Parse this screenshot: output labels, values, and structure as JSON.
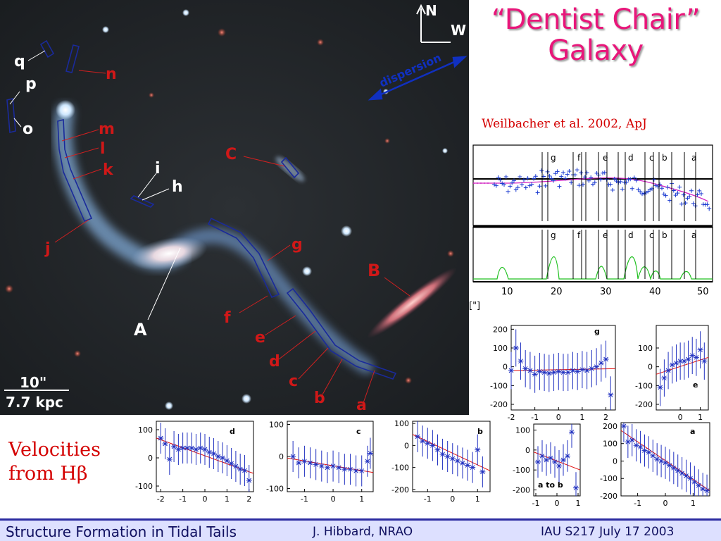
{
  "slide": {
    "title_line1": "“Dentist Chair”",
    "title_line2": "Galaxy",
    "citation": "Weilbacher et al.  2002, ApJ",
    "caption_line1": "Velocities",
    "caption_line2": "from Hβ"
  },
  "image": {
    "compass_n": "N",
    "compass_w": "W",
    "dispersion": "dispersion",
    "scale_arcsec": "10\"",
    "scale_kpc": "7.7 kpc",
    "slit_labels": [
      "q",
      "p",
      "o",
      "n",
      "m",
      "l",
      "k",
      "j",
      "i",
      "h",
      "C",
      "g",
      "f",
      "e",
      "d",
      "c",
      "b",
      "a"
    ],
    "object_labels": [
      "A",
      "B"
    ]
  },
  "spectrum": {
    "region_labels": [
      "g",
      "f",
      "e",
      "d",
      "c",
      "b",
      "a"
    ],
    "x_ticks": [
      "10",
      "20",
      "30",
      "40",
      "50"
    ],
    "x_unit": "[\"]"
  },
  "footer": {
    "left": "Structure Formation in Tidal Tails",
    "middle": "J. Hibbard, NRAO",
    "right": "IAU S217  July 17 2003"
  },
  "chart_data": [
    {
      "type": "scatter",
      "label": "g",
      "xlim": [
        -2,
        2.4
      ],
      "ylim": [
        -230,
        220
      ],
      "x_ticks": [
        "-2",
        "-1",
        "0",
        "1",
        "2"
      ],
      "y_ticks": [
        "200",
        "100",
        "0",
        "-100",
        "-200"
      ],
      "x": [
        -2.0,
        -1.8,
        -1.6,
        -1.4,
        -1.2,
        -1.0,
        -0.8,
        -0.6,
        -0.4,
        -0.2,
        0.0,
        0.2,
        0.4,
        0.6,
        0.8,
        1.0,
        1.2,
        1.4,
        1.6,
        1.8,
        2.0,
        2.2
      ],
      "y": [
        -20,
        100,
        30,
        -10,
        -20,
        -40,
        -25,
        -30,
        -35,
        -30,
        -25,
        -30,
        -30,
        -20,
        -25,
        -15,
        -20,
        -10,
        0,
        20,
        40,
        -150
      ],
      "fit": [
        [
          -2.0,
          -20
        ],
        [
          2.4,
          -10
        ]
      ]
    },
    {
      "type": "scatter",
      "label": "e",
      "xlim": [
        -1.2,
        1.4
      ],
      "ylim": [
        -230,
        220
      ],
      "x_ticks": [
        "0",
        "1"
      ],
      "y_ticks": [
        "100",
        "0",
        "-100",
        "-200"
      ],
      "x": [
        -1.0,
        -0.8,
        -0.6,
        -0.4,
        -0.2,
        0.0,
        0.2,
        0.4,
        0.6,
        0.8,
        1.0,
        1.2
      ],
      "y": [
        -110,
        -60,
        -20,
        10,
        20,
        30,
        30,
        40,
        60,
        50,
        90,
        30
      ],
      "fit": [
        [
          -1.2,
          -40
        ],
        [
          1.4,
          50
        ]
      ]
    },
    {
      "type": "scatter",
      "label": "d",
      "xlim": [
        -2.2,
        2.2
      ],
      "ylim": [
        -120,
        130
      ],
      "x_ticks": [
        "-2",
        "-1",
        "0",
        "1",
        "2"
      ],
      "y_ticks": [
        "100",
        "0",
        "-100"
      ],
      "x": [
        -2.0,
        -1.8,
        -1.6,
        -1.4,
        -1.2,
        -1.0,
        -0.8,
        -0.6,
        -0.4,
        -0.2,
        0.0,
        0.2,
        0.4,
        0.6,
        0.8,
        1.0,
        1.2,
        1.4,
        1.6,
        1.8,
        2.0
      ],
      "y": [
        70,
        50,
        -5,
        40,
        30,
        35,
        35,
        35,
        30,
        35,
        30,
        20,
        15,
        5,
        0,
        -10,
        -20,
        -30,
        -40,
        -45,
        -80
      ],
      "fit": [
        [
          -2.2,
          70
        ],
        [
          2.2,
          -55
        ]
      ]
    },
    {
      "type": "scatter",
      "label": "c",
      "xlim": [
        -1.6,
        1.4
      ],
      "ylim": [
        -110,
        110
      ],
      "x_ticks": [
        "-1",
        "0",
        "1"
      ],
      "y_ticks": [
        "100",
        "0",
        "-100"
      ],
      "x": [
        -1.4,
        -1.2,
        -1.0,
        -0.8,
        -0.6,
        -0.4,
        -0.2,
        0.0,
        0.2,
        0.4,
        0.6,
        0.8,
        1.0,
        1.2,
        1.3
      ],
      "y": [
        0,
        -20,
        -15,
        -20,
        -25,
        -30,
        -35,
        -30,
        -35,
        -40,
        -40,
        -45,
        -45,
        -15,
        10
      ],
      "fit": [
        [
          -1.6,
          -5
        ],
        [
          1.4,
          -50
        ]
      ]
    },
    {
      "type": "scatter",
      "label": "b",
      "xlim": [
        -1.6,
        1.5
      ],
      "ylim": [
        -210,
        110
      ],
      "x_ticks": [
        "-1",
        "0",
        "1"
      ],
      "y_ticks": [
        "100",
        "0",
        "-100",
        "-200"
      ],
      "x": [
        -1.4,
        -1.2,
        -1.0,
        -0.8,
        -0.6,
        -0.4,
        -0.2,
        0.0,
        0.2,
        0.4,
        0.6,
        0.8,
        1.0,
        1.2
      ],
      "y": [
        40,
        20,
        10,
        0,
        -20,
        -40,
        -50,
        -60,
        -70,
        -80,
        -90,
        -100,
        -20,
        -120
      ],
      "fit": [
        [
          -1.6,
          50
        ],
        [
          1.5,
          -115
        ]
      ]
    },
    {
      "type": "scatter",
      "label": "a to b",
      "xlim": [
        -1.1,
        1.1
      ],
      "ylim": [
        -230,
        130
      ],
      "x_ticks": [
        "-1",
        "0",
        "1"
      ],
      "y_ticks": [
        "100",
        "0",
        "-100",
        "-200"
      ],
      "x": [
        -0.9,
        -0.7,
        -0.5,
        -0.3,
        -0.1,
        0.1,
        0.3,
        0.5,
        0.7,
        0.9
      ],
      "y": [
        -60,
        -30,
        -50,
        -40,
        -60,
        -80,
        -50,
        -30,
        90,
        -190
      ],
      "fit": [
        [
          -1.1,
          -10
        ],
        [
          1.1,
          -100
        ]
      ]
    },
    {
      "type": "scatter",
      "label": "a",
      "xlim": [
        -1.6,
        1.6
      ],
      "ylim": [
        -200,
        220
      ],
      "x_ticks": [
        "-1",
        "0",
        "1"
      ],
      "y_ticks": [
        "200",
        "100",
        "0",
        "-100",
        "-200"
      ],
      "x": [
        -1.5,
        -1.35,
        -1.2,
        -1.05,
        -0.9,
        -0.75,
        -0.6,
        -0.45,
        -0.3,
        -0.15,
        0.0,
        0.15,
        0.3,
        0.45,
        0.6,
        0.75,
        0.9,
        1.05,
        1.2,
        1.35,
        1.5
      ],
      "y": [
        200,
        110,
        120,
        90,
        80,
        60,
        50,
        30,
        10,
        0,
        -10,
        -25,
        -40,
        -55,
        -70,
        -85,
        -100,
        -120,
        -140,
        -160,
        -170
      ],
      "fit": [
        [
          -1.6,
          175
        ],
        [
          1.6,
          -170
        ]
      ]
    }
  ]
}
